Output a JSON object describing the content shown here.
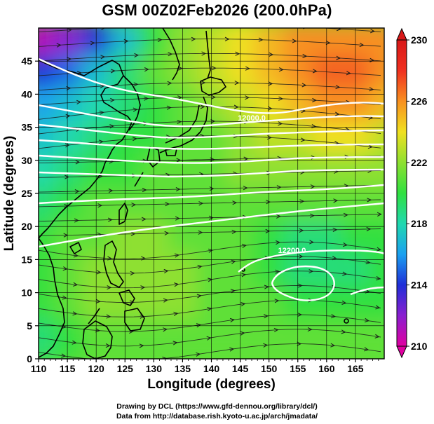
{
  "chart_data": {
    "type": "heatmap",
    "title": "GSM 00Z02Feb2026 (200.0hPa)",
    "xlabel": "Longitude (degrees)",
    "ylabel": "Latitude  (degrees)",
    "xlim": [
      110,
      170
    ],
    "ylim": [
      0,
      50
    ],
    "x_ticks": [
      110,
      115,
      120,
      125,
      130,
      135,
      140,
      145,
      150,
      155,
      160,
      165
    ],
    "y_ticks": [
      0,
      5,
      10,
      15,
      20,
      25,
      30,
      35,
      40,
      45
    ],
    "colorbar": {
      "range": [
        210,
        230
      ],
      "ticks": [
        210,
        214,
        218,
        222,
        226,
        230
      ],
      "colors": [
        "#e000a0",
        "#8a1fd0",
        "#1f2fd8",
        "#1aa0f0",
        "#20d8b0",
        "#30e040",
        "#8ee030",
        "#f0e020",
        "#f89020",
        "#f03020",
        "#d81818"
      ]
    },
    "heatmap_field": [
      {
        "lat": 48,
        "values": [
          211,
          212,
          214,
          217,
          220,
          222,
          223,
          224,
          225,
          226,
          226,
          226,
          226
        ]
      },
      {
        "lat": 43,
        "values": [
          214,
          215,
          217,
          219,
          221,
          222,
          223,
          224,
          225,
          226,
          227,
          227,
          226
        ]
      },
      {
        "lat": 38,
        "values": [
          216,
          217,
          218,
          219,
          220,
          221,
          222,
          223,
          224,
          225,
          226,
          226,
          225
        ]
      },
      {
        "lat": 33,
        "values": [
          217,
          218,
          219,
          220,
          220,
          221,
          221,
          222,
          223,
          223,
          224,
          224,
          223
        ]
      },
      {
        "lat": 28,
        "values": [
          218,
          219,
          220,
          220,
          221,
          221,
          221,
          222,
          222,
          222,
          222,
          222,
          222
        ]
      },
      {
        "lat": 23,
        "values": [
          219,
          220,
          221,
          221,
          221,
          221,
          221,
          221,
          221,
          221,
          221,
          221,
          221
        ]
      },
      {
        "lat": 18,
        "values": [
          220,
          221,
          221,
          222,
          222,
          221,
          221,
          221,
          220,
          219,
          219,
          220,
          220
        ]
      },
      {
        "lat": 13,
        "values": [
          220,
          221,
          222,
          222,
          222,
          222,
          221,
          221,
          220,
          219,
          219,
          219,
          220
        ]
      },
      {
        "lat": 8,
        "values": [
          220,
          221,
          222,
          222,
          222,
          222,
          221,
          221,
          221,
          220,
          220,
          220,
          220
        ]
      },
      {
        "lat": 3,
        "values": [
          219,
          220,
          221,
          221,
          221,
          221,
          221,
          221,
          221,
          221,
          221,
          221,
          221
        ]
      }
    ],
    "field_lons": [
      110,
      115,
      120,
      125,
      130,
      135,
      140,
      145,
      150,
      155,
      160,
      165,
      170
    ],
    "contour_labels": [
      {
        "text": "12000.0",
        "lon": 147,
        "lat": 36
      },
      {
        "text": "12200.0",
        "lon": 154,
        "lat": 16
      }
    ],
    "credit_lines": [
      "Drawing by DCL (https://www.gfd-dennou.org/library/dcl/)",
      "Data from http://database.rish.kyoto-u.ac.jp/arch/jmadata/"
    ]
  }
}
